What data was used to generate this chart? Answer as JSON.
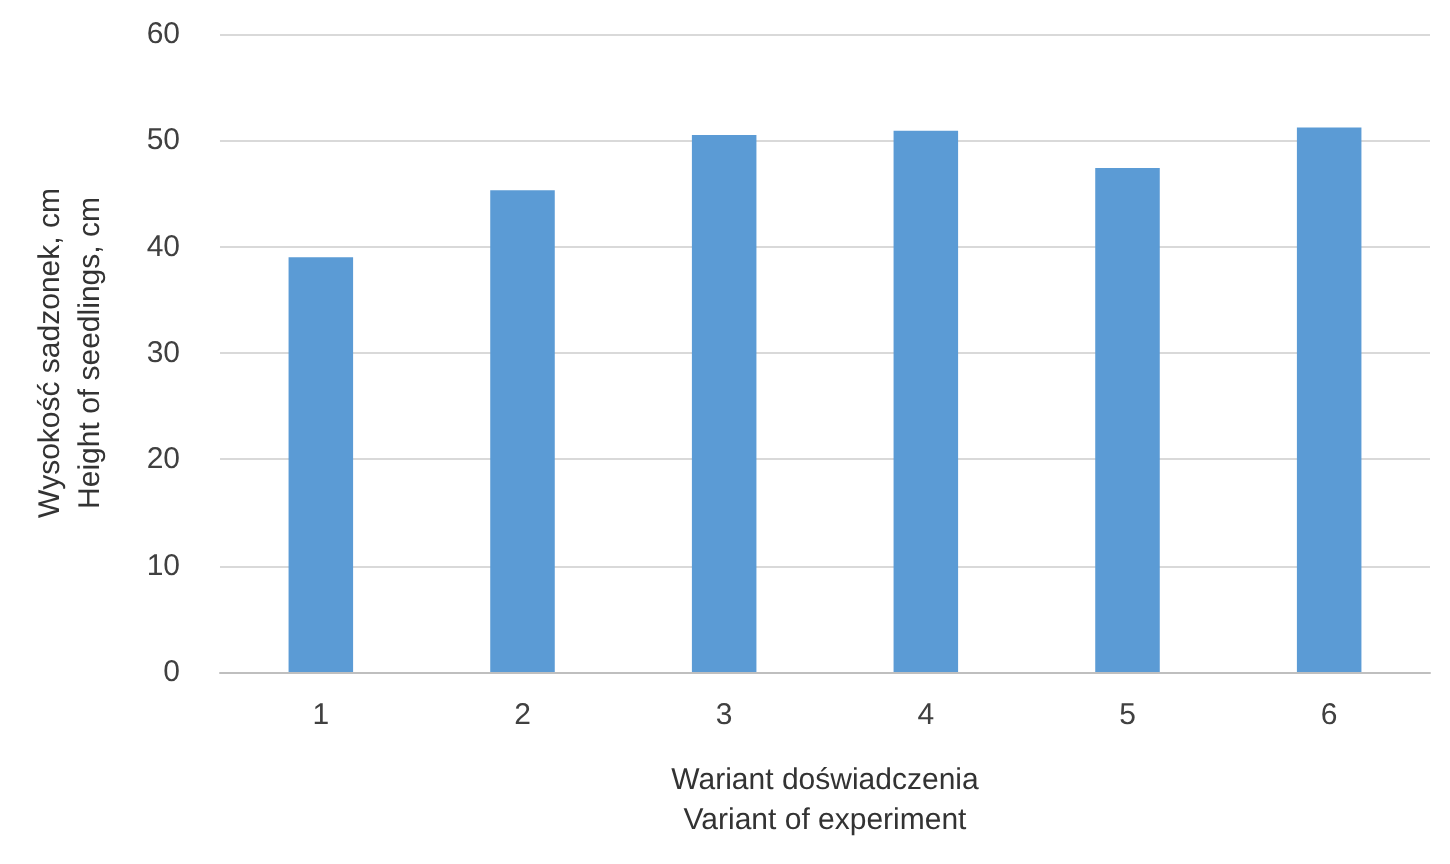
{
  "chart_data": {
    "type": "bar",
    "xlabel": "Wariant doświadczenia\nVariant of experiment",
    "ylabel": "Wysokość sadzonek, cm\nHeight of seedlings, cm",
    "categories": [
      "1",
      "2",
      "3",
      "4",
      "5",
      "6"
    ],
    "values": [
      39.0,
      45.3,
      50.5,
      50.9,
      47.4,
      51.2
    ],
    "color": "#5b9bd5",
    "ylim": [
      0,
      60
    ],
    "yticks": [
      0,
      10,
      20,
      30,
      40,
      50,
      60
    ],
    "grid": "y"
  }
}
